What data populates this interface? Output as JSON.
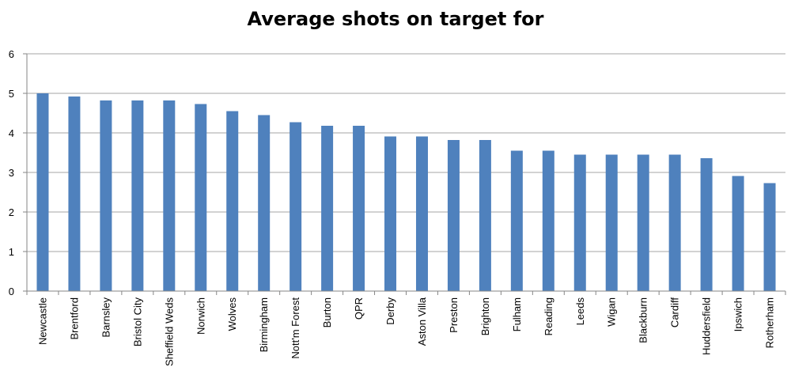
{
  "chart_data": {
    "type": "bar",
    "title": "Average shots on target for",
    "xlabel": "",
    "ylabel": "",
    "ylim": [
      0,
      6
    ],
    "yticks": [
      0,
      1,
      2,
      3,
      4,
      5,
      6
    ],
    "grid": true,
    "legend": "none",
    "bar_color": "#4F81BD",
    "categories": [
      "Newcastle",
      "Brentford",
      "Barnsley",
      "Bristol City",
      "Sheffield Weds",
      "Norwich",
      "Wolves",
      "Birmingham",
      "Nott'm Forest",
      "Burton",
      "QPR",
      "Derby",
      "Aston Villa",
      "Preston",
      "Brighton",
      "Fulham",
      "Reading",
      "Leeds",
      "Wigan",
      "Blackburn",
      "Cardiff",
      "Huddersfield",
      "Ipswich",
      "Rotherham"
    ],
    "values": [
      5.0,
      4.92,
      4.82,
      4.82,
      4.82,
      4.73,
      4.55,
      4.45,
      4.27,
      4.18,
      4.18,
      3.91,
      3.91,
      3.82,
      3.82,
      3.55,
      3.55,
      3.45,
      3.45,
      3.45,
      3.45,
      3.36,
      2.91,
      2.73
    ]
  }
}
